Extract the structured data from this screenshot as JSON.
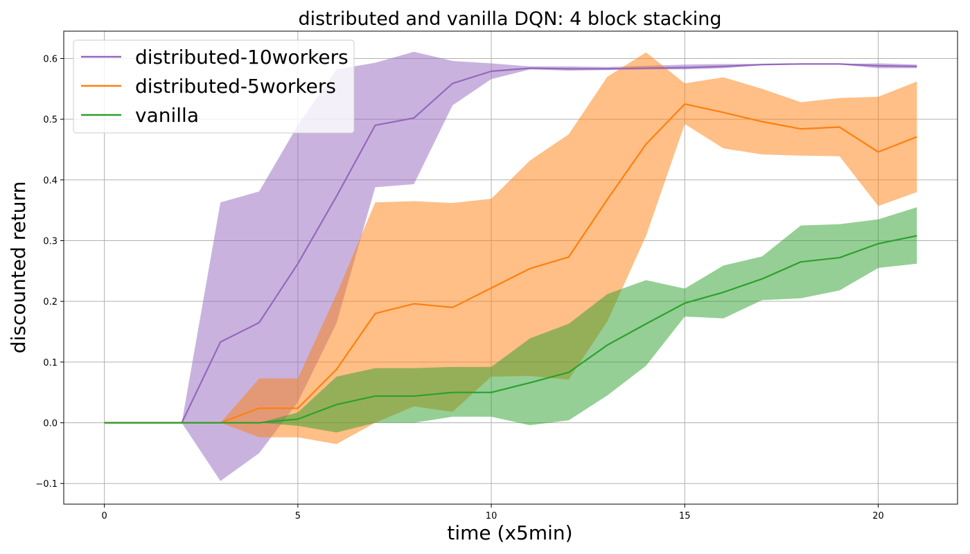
{
  "chart_data": {
    "type": "line",
    "title": "distributed and vanilla DQN: 4 block stacking",
    "xlabel": "time (x5min)",
    "ylabel": "discounted return",
    "xlim": [
      -1.05,
      22.05
    ],
    "ylim": [
      -0.134,
      0.645
    ],
    "xticks": [
      0,
      5,
      10,
      15,
      20
    ],
    "xtick_labels": [
      "0",
      "5",
      "10",
      "15",
      "20"
    ],
    "yticks": [
      -0.1,
      0.0,
      0.1,
      0.2,
      0.3,
      0.4,
      0.5,
      0.6
    ],
    "ytick_labels": [
      "−0.1",
      "0.0",
      "0.1",
      "0.2",
      "0.3",
      "0.4",
      "0.5",
      "0.6"
    ],
    "grid": true,
    "legend_position": "top-left",
    "x": [
      0,
      1,
      2,
      3,
      4,
      5,
      6,
      7,
      8,
      9,
      10,
      11,
      12,
      13,
      14,
      15,
      16,
      17,
      18,
      19,
      20,
      21
    ],
    "series": [
      {
        "name": "distributed-10workers",
        "color": "#9467bd",
        "band_color": "#c5b0d5",
        "values": [
          0,
          0,
          0,
          0.133,
          0.165,
          0.262,
          0.373,
          0.49,
          0.502,
          0.559,
          0.579,
          0.584,
          0.583,
          0.583,
          0.584,
          0.585,
          0.587,
          0.59,
          0.591,
          0.591,
          0.588,
          0.587
        ],
        "upper": [
          0,
          0,
          0,
          0.363,
          0.381,
          0.49,
          0.582,
          0.593,
          0.611,
          0.596,
          0.592,
          0.587,
          0.587,
          0.586,
          0.588,
          0.59,
          0.591,
          0.591,
          0.592,
          0.591,
          0.592,
          0.59
        ],
        "lower": [
          0,
          0,
          0,
          -0.096,
          -0.05,
          0.034,
          0.164,
          0.388,
          0.393,
          0.523,
          0.566,
          0.582,
          0.58,
          0.581,
          0.582,
          0.582,
          0.584,
          0.589,
          0.59,
          0.59,
          0.584,
          0.584
        ]
      },
      {
        "name": "distributed-5workers",
        "color": "#ff7f0e",
        "band_color": "#ffbb78",
        "values": [
          0,
          0,
          0,
          0,
          0.024,
          0.024,
          0.088,
          0.18,
          0.196,
          0.19,
          0.222,
          0.254,
          0.273,
          0.368,
          0.459,
          0.525,
          0.511,
          0.496,
          0.484,
          0.487,
          0.446,
          0.471
        ],
        "upper": [
          0,
          0,
          0,
          0,
          0.073,
          0.073,
          0.212,
          0.363,
          0.365,
          0.362,
          0.369,
          0.432,
          0.475,
          0.57,
          0.61,
          0.559,
          0.569,
          0.55,
          0.528,
          0.535,
          0.537,
          0.562
        ],
        "lower": [
          0,
          0,
          0,
          0,
          -0.024,
          -0.024,
          -0.035,
          0.0,
          0.027,
          0.018,
          0.076,
          0.077,
          0.071,
          0.167,
          0.308,
          0.492,
          0.452,
          0.442,
          0.44,
          0.439,
          0.357,
          0.38
        ]
      },
      {
        "name": "vanilla",
        "color": "#2ca02c",
        "band_color": "#98df8a",
        "values": [
          0,
          0,
          0,
          0,
          0,
          0.006,
          0.03,
          0.044,
          0.044,
          0.05,
          0.05,
          0.066,
          0.083,
          0.128,
          0.163,
          0.197,
          0.215,
          0.237,
          0.265,
          0.272,
          0.295,
          0.308
        ],
        "upper": [
          0,
          0,
          0,
          0,
          0,
          0.017,
          0.076,
          0.09,
          0.09,
          0.092,
          0.092,
          0.139,
          0.163,
          0.212,
          0.235,
          0.221,
          0.259,
          0.274,
          0.325,
          0.327,
          0.335,
          0.355
        ],
        "lower": [
          0,
          0,
          0,
          0,
          0,
          -0.005,
          -0.016,
          0.0,
          0.0,
          0.01,
          0.01,
          -0.004,
          0.004,
          0.045,
          0.094,
          0.175,
          0.172,
          0.202,
          0.205,
          0.218,
          0.255,
          0.262
        ]
      }
    ]
  }
}
